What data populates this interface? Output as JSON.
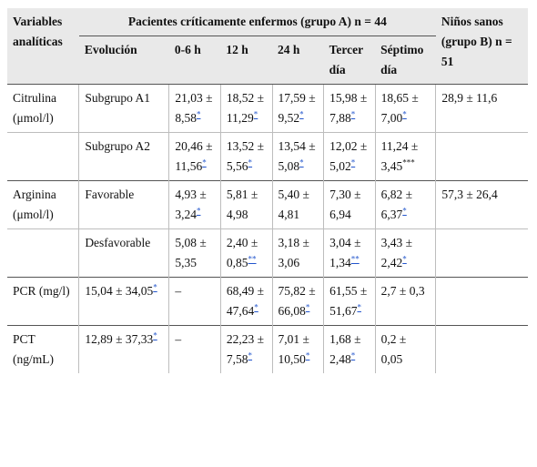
{
  "header": {
    "variables": "Variables analíticas",
    "group_a": "Pacientes críticamente enfermos (grupo A) n = 44",
    "group_b": "Niños sanos (grupo B) n = 51",
    "evolucion": "Evolución",
    "col_06h": "0-6 h",
    "col_12h": "12 h",
    "col_24h": "24 h",
    "col_tercer": "Tercer día",
    "col_septimo": "Séptimo día"
  },
  "rows": [
    {
      "var": "Citrulina (μmol/l)",
      "group": "Subgrupo A1",
      "c1": "21,03 ± 8,58",
      "c1s": "*",
      "c2": "18,52 ± 11,29",
      "c2s": "*",
      "c3": "17,59 ± 9,52",
      "c3s": "*",
      "c4": "15,98 ± 7,88",
      "c4s": "*",
      "c5": "18,65 ± 7,00",
      "c5s": "*",
      "b": "28,9 ± 11,6"
    },
    {
      "var": "",
      "group": "Subgrupo A2",
      "c1": "20,46 ± 11,56",
      "c1s": "*",
      "c2": "13,52 ± 5,56",
      "c2s": "*",
      "c3": "13,54 ± 5,08",
      "c3s": "*",
      "c4": "12,02 ± 5,02",
      "c4s": "*",
      "c5": "11,24 ± 3,45",
      "c5s": "***",
      "b": ""
    },
    {
      "var": "Arginina (μmol/l)",
      "group": "Favorable",
      "c1": "4,93 ± 3,24",
      "c1s": "*",
      "c2": "5,81 ± 4,98",
      "c2s": "",
      "c3": "5,40 ± 4,81",
      "c3s": "",
      "c4": "7,30 ± 6,94",
      "c4s": "",
      "c5": "6,82 ± 6,37",
      "c5s": "*",
      "b": "57,3 ± 26,4"
    },
    {
      "var": "",
      "group": "Desfavorable",
      "c1": "5,08 ± 5,35",
      "c1s": "",
      "c2": "2,40 ± 0,85",
      "c2s": "**",
      "c3": "3,18 ± 3,06",
      "c3s": "",
      "c4": "3,04 ± 1,34",
      "c4s": "**",
      "c5": "3,43 ± 2,42",
      "c5s": "*",
      "b": ""
    },
    {
      "var": "PCR (mg/l)",
      "group": "15,04 ± 34,05",
      "groups": "*",
      "c1": "–",
      "c1s": "",
      "c2": "68,49 ± 47,64",
      "c2s": "*",
      "c3": "75,82 ± 66,08",
      "c3s": "*",
      "c4": "61,55 ± 51,67",
      "c4s": "*",
      "c5": "2,7 ± 0,3",
      "c5s": "",
      "b": ""
    },
    {
      "var": "PCT (ng/mL)",
      "group": "12,89 ± 37,33",
      "groups": "*",
      "c1": "–",
      "c1s": "",
      "c2": "22,23 ± 7,58",
      "c2s": "*",
      "c3": "7,01 ± 10,50",
      "c3s": "*",
      "c4": "1,68 ± 2,48",
      "c4s": "*",
      "c5": "0,2 ± 0,05",
      "c5s": "",
      "b": ""
    }
  ]
}
